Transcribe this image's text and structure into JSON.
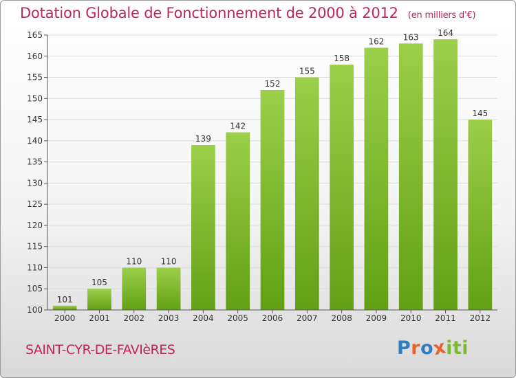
{
  "header": {
    "title": "Dotation Globale de Fonctionnement de 2000 à 2012",
    "unit": "(en milliers d'€)"
  },
  "footer": {
    "commune": "SAINT-CYR-DE-FAVIèRES",
    "logo_letters": [
      "P",
      "r",
      "o",
      "x",
      "i",
      "t",
      "i"
    ]
  },
  "colors": {
    "title": "#c0265a",
    "bar_top": "#9ccf4a",
    "bar_bottom": "#62a015",
    "grid": "#dcdcdc",
    "axis": "#555555",
    "logo": [
      "#2f7fc1",
      "#e7632e",
      "#2f7fc1",
      "#e7632e",
      "#7cba34",
      "#7cba34",
      "#7cba34"
    ]
  },
  "chart_data": {
    "type": "bar",
    "title": "Dotation Globale de Fonctionnement de 2000 à 2012",
    "subtitle": "(en milliers d'€)",
    "categories": [
      "2000",
      "2001",
      "2002",
      "2003",
      "2004",
      "2005",
      "2006",
      "2007",
      "2008",
      "2009",
      "2010",
      "2011",
      "2012"
    ],
    "values": [
      101,
      105,
      110,
      110,
      139,
      142,
      152,
      155,
      158,
      162,
      163,
      164,
      145
    ],
    "ylim": [
      100,
      165
    ],
    "yticks": [
      100,
      105,
      110,
      115,
      120,
      125,
      130,
      135,
      140,
      145,
      150,
      155,
      160,
      165
    ],
    "grid": true,
    "legend": "none"
  }
}
